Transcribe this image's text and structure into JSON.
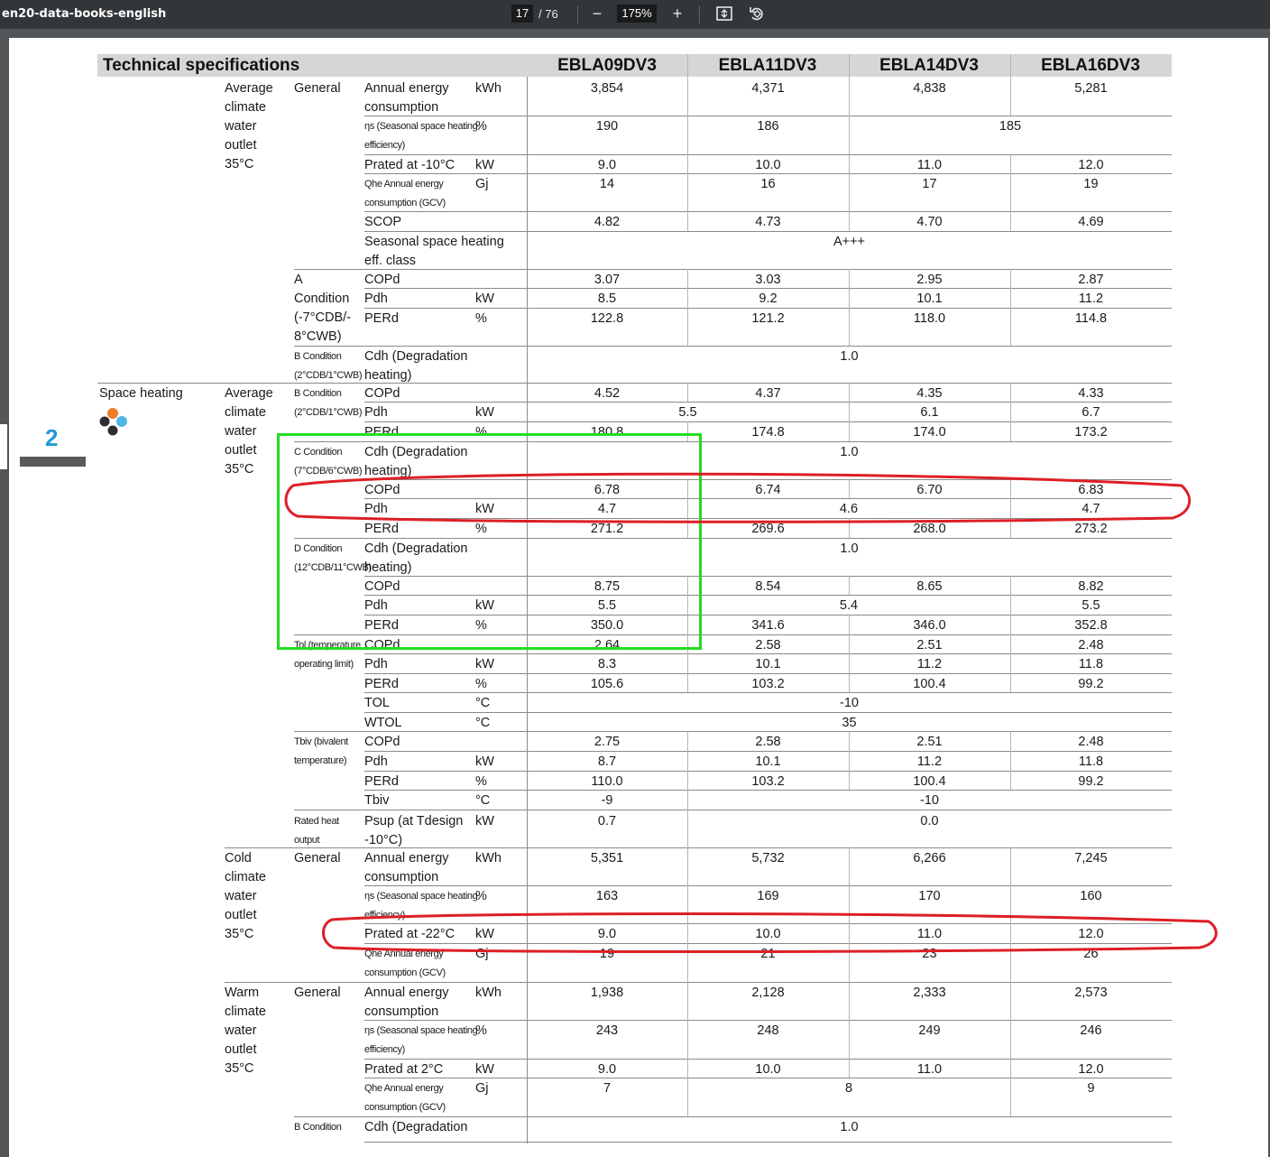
{
  "viewer": {
    "doc_title": "en20-data-books-english",
    "page_current": "17",
    "page_total": "/ 76",
    "zoom": "175%",
    "zoom_out_icon": "−",
    "zoom_in_icon": "+"
  },
  "page": {
    "section_number": "2",
    "title": "Technical specifications",
    "models": [
      "EBLA09DV3",
      "EBLA11DV3",
      "EBLA14DV3",
      "EBLA16DV3"
    ],
    "category": "Space heating",
    "groups": [
      {
        "text": "Average\nclimate\nwater\noutlet\n35°C"
      },
      {
        "text": "Average\nclimate\nwater\noutlet\n35°C"
      },
      {
        "text": "Cold\nclimate\nwater\noutlet\n35°C"
      },
      {
        "text": "Warm\nclimate\nwater\noutlet\n35°C"
      }
    ],
    "subgroups": [
      {
        "text": "General",
        "small": false
      },
      {
        "text": "A\nCondition\n(-7°CDB/-\n8°CWB)",
        "small": false
      },
      {
        "text": "B Condition\n(2°CDB/1°CWB)",
        "small": true
      },
      {
        "text": "B Condition\n(2°CDB/1°CWB)",
        "small": true
      },
      {
        "text": "C Condition\n(7°CDB/6°CWB)",
        "small": true
      },
      {
        "text": "D Condition\n(12°CDB/11°CWB)",
        "small": true
      },
      {
        "text": "Tol (temperature\noperating limit)",
        "small": true
      },
      {
        "text": "Tbiv (bivalent\ntemperature)",
        "small": true
      },
      {
        "text": "Rated heat\noutput",
        "small": true
      },
      {
        "text": "General",
        "small": false
      },
      {
        "text": "General",
        "small": false
      },
      {
        "text": "B Condition",
        "small": true
      }
    ],
    "rows": [
      {
        "label": "Annual energy\nconsumption",
        "unit": "kWh",
        "values": [
          "3,854",
          "4,371",
          "4,838",
          "5,281"
        ]
      },
      {
        "label": "ηs (Seasonal space heating\nefficiency)",
        "small": true,
        "unit": "%",
        "values": [
          "190",
          "186",
          "185"
        ]
      },
      {
        "label": "Prated at -10°C",
        "unit": "kW",
        "values": [
          "9.0",
          "10.0",
          "11.0",
          "12.0"
        ]
      },
      {
        "label": "Qhe Annual energy\nconsumption (GCV)",
        "small": true,
        "unit": "Gj",
        "values": [
          "14",
          "16",
          "17",
          "19"
        ]
      },
      {
        "label": "SCOP",
        "unit": "",
        "values": [
          "4.82",
          "4.73",
          "4.70",
          "4.69"
        ]
      },
      {
        "label": "Seasonal space heating\neff. class",
        "unit": "",
        "values": [
          "A+++"
        ]
      },
      {
        "label": "COPd",
        "unit": "",
        "values": [
          "3.07",
          "3.03",
          "2.95",
          "2.87"
        ]
      },
      {
        "label": "Pdh",
        "unit": "kW",
        "values": [
          "8.5",
          "9.2",
          "10.1",
          "11.2"
        ]
      },
      {
        "label": "PERd",
        "unit": "%",
        "values": [
          "122.8",
          "121.2",
          "118.0",
          "114.8"
        ]
      },
      {
        "label": "Cdh (Degradation\nheating)",
        "unit": "",
        "values": [
          "1.0"
        ]
      },
      {
        "label": "COPd",
        "unit": "",
        "values": [
          "4.52",
          "4.37",
          "4.35",
          "4.33"
        ]
      },
      {
        "label": "Pdh",
        "unit": "kW",
        "values": [
          "5.5",
          "6.1",
          "6.7"
        ]
      },
      {
        "label": "PERd",
        "unit": "%",
        "values": [
          "180.8",
          "174.8",
          "174.0",
          "173.2"
        ]
      },
      {
        "label": "Cdh (Degradation\nheating)",
        "unit": "",
        "values": [
          "1.0"
        ]
      },
      {
        "label": "COPd",
        "unit": "",
        "values": [
          "6.78",
          "6.74",
          "6.70",
          "6.83"
        ]
      },
      {
        "label": "Pdh",
        "unit": "kW",
        "values": [
          "4.7",
          "4.6",
          "4.7"
        ]
      },
      {
        "label": "PERd",
        "unit": "%",
        "values": [
          "271.2",
          "269.6",
          "268.0",
          "273.2"
        ]
      },
      {
        "label": "Cdh (Degradation\nheating)",
        "unit": "",
        "values": [
          "1.0"
        ]
      },
      {
        "label": "COPd",
        "unit": "",
        "values": [
          "8.75",
          "8.54",
          "8.65",
          "8.82"
        ]
      },
      {
        "label": "Pdh",
        "unit": "kW",
        "values": [
          "5.5",
          "5.4",
          "5.5"
        ]
      },
      {
        "label": "PERd",
        "unit": "%",
        "values": [
          "350.0",
          "341.6",
          "346.0",
          "352.8"
        ]
      },
      {
        "label": "COPd",
        "unit": "",
        "values": [
          "2.64",
          "2.58",
          "2.51",
          "2.48"
        ]
      },
      {
        "label": "Pdh",
        "unit": "kW",
        "values": [
          "8.3",
          "10.1",
          "11.2",
          "11.8"
        ]
      },
      {
        "label": "PERd",
        "unit": "%",
        "values": [
          "105.6",
          "103.2",
          "100.4",
          "99.2"
        ]
      },
      {
        "label": "TOL",
        "unit": "°C",
        "values": [
          "-10"
        ]
      },
      {
        "label": "WTOL",
        "unit": "°C",
        "values": [
          "35"
        ]
      },
      {
        "label": "COPd",
        "unit": "",
        "values": [
          "2.75",
          "2.58",
          "2.51",
          "2.48"
        ]
      },
      {
        "label": "Pdh",
        "unit": "kW",
        "values": [
          "8.7",
          "10.1",
          "11.2",
          "11.8"
        ]
      },
      {
        "label": "PERd",
        "unit": "%",
        "values": [
          "110.0",
          "103.2",
          "100.4",
          "99.2"
        ]
      },
      {
        "label": "Tbiv",
        "unit": "°C",
        "values": [
          "-9",
          "-10"
        ]
      },
      {
        "label": "Psup (at Tdesign\n-10°C)",
        "unit": "kW",
        "values": [
          "0.7",
          "0.0"
        ]
      },
      {
        "label": "Annual energy\nconsumption",
        "unit": "kWh",
        "values": [
          "5,351",
          "5,732",
          "6,266",
          "7,245"
        ]
      },
      {
        "label": "ηs (Seasonal space heating\nefficiency)",
        "small": true,
        "unit": "%",
        "values": [
          "163",
          "169",
          "170",
          "160"
        ]
      },
      {
        "label": "Prated at -22°C",
        "unit": "kW",
        "values": [
          "9.0",
          "10.0",
          "11.0",
          "12.0"
        ]
      },
      {
        "label": "Qhe Annual energy\nconsumption (GCV)",
        "small": true,
        "unit": "Gj",
        "values": [
          "19",
          "21",
          "23",
          "26"
        ]
      },
      {
        "label": "Annual energy\nconsumption",
        "unit": "kWh",
        "values": [
          "1,938",
          "2,128",
          "2,333",
          "2,573"
        ]
      },
      {
        "label": "ηs (Seasonal space heating\nefficiency)",
        "small": true,
        "unit": "%",
        "values": [
          "243",
          "248",
          "249",
          "246"
        ]
      },
      {
        "label": "Prated at 2°C",
        "unit": "kW",
        "values": [
          "9.0",
          "10.0",
          "11.0",
          "12.0"
        ]
      },
      {
        "label": "Qhe Annual energy\nconsumption (GCV)",
        "small": true,
        "unit": "Gj",
        "values": [
          "7",
          "8",
          "9"
        ]
      },
      {
        "label": "Cdh (Degradation",
        "unit": "",
        "values": [
          "1.0"
        ]
      }
    ],
    "annotation_colors": {
      "green_box": "#22dd22",
      "red_ellipse": "#dd1f26"
    }
  }
}
